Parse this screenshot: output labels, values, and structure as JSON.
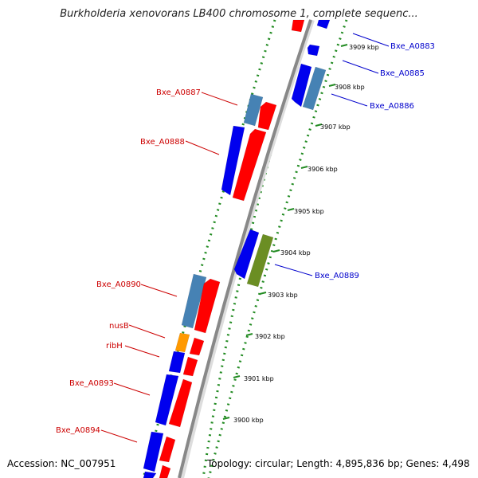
{
  "title": "Burkholderia xenovorans LB400 chromosome 1, complete sequenc...",
  "footer": {
    "accession": "Accession: NC_007951",
    "topology": "Topology: circular; Length: 4,895,836 bp; Genes: 4,498"
  },
  "colors": {
    "backbone": "#888888",
    "track_dots": "#228B22",
    "left_label": "#cc0000",
    "right_label": "#0000cc",
    "red_gene": "#ff0000",
    "blue_gene": "#0000ee",
    "steel_gene": "#4682b4",
    "olive_gene": "#6b8e23",
    "orange_gene": "#ff9900"
  },
  "ticks": [
    {
      "label": "3909 kbp",
      "kbp": 3909
    },
    {
      "label": "3908 kbp",
      "kbp": 3908
    },
    {
      "label": "3907 kbp",
      "kbp": 3907
    },
    {
      "label": "3906 kbp",
      "kbp": 3906
    },
    {
      "label": "3905 kbp",
      "kbp": 3905
    },
    {
      "label": "3904 kbp",
      "kbp": 3904
    },
    {
      "label": "3903 kbp",
      "kbp": 3903
    },
    {
      "label": "3902 kbp",
      "kbp": 3902
    },
    {
      "label": "3901 kbp",
      "kbp": 3901
    },
    {
      "label": "3900 kbp",
      "kbp": 3900
    }
  ],
  "left_labels": [
    "Bxe_A0887",
    "Bxe_A0888",
    "Bxe_A0890",
    "nusB",
    "ribH",
    "Bxe_A0893",
    "Bxe_A0894"
  ],
  "right_labels": [
    "Bxe_A0883",
    "Bxe_A0885",
    "Bxe_A0886",
    "Bxe_A0889"
  ]
}
